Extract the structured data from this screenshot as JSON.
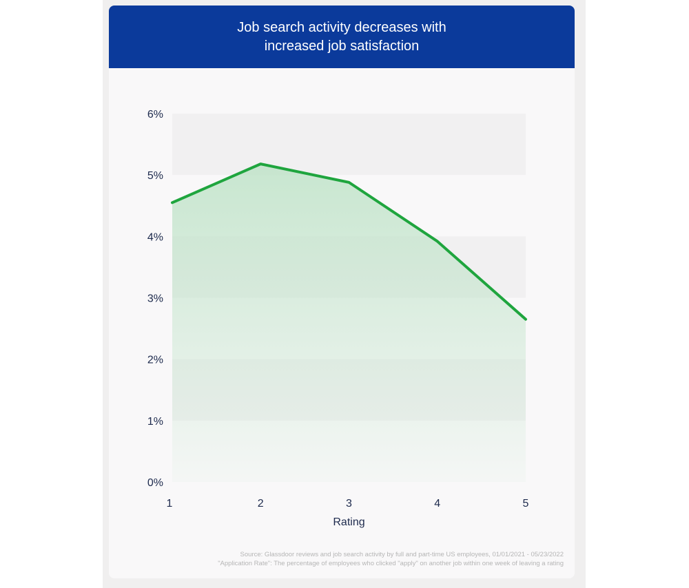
{
  "header": {
    "title_line1": "Job search activity decreases with",
    "title_line2": "increased job satisfaction"
  },
  "colors": {
    "header_bg": "#0b3a9b",
    "line": "#1fa53e",
    "fill": "#bfe3c8",
    "band": "#f1f0f1"
  },
  "chart_data": {
    "type": "area",
    "title": "Job search activity decreases with increased job satisfaction",
    "xlabel": "Rating",
    "ylabel": "",
    "x": [
      1,
      2,
      3,
      4,
      5
    ],
    "x_tick_labels": [
      "1",
      "2",
      "3",
      "4",
      "5"
    ],
    "values": [
      4.55,
      5.18,
      4.88,
      3.92,
      2.65
    ],
    "ylim": [
      0,
      6
    ],
    "y_ticks": [
      0,
      1,
      2,
      3,
      4,
      5,
      6
    ],
    "y_tick_labels": [
      "0%",
      "1%",
      "2%",
      "3%",
      "4%",
      "5%",
      "6%"
    ],
    "grid": "alternating horizontal bands",
    "legend": "none"
  },
  "footnotes": {
    "source": "Source: Glassdoor reviews and job search activity by full and part-time US employees, 01/01/2021 - 05/23/2022",
    "definition": "\"Application Rate\": The percentage of employees who clicked \"apply\" on another job within one week of leaving a rating"
  }
}
